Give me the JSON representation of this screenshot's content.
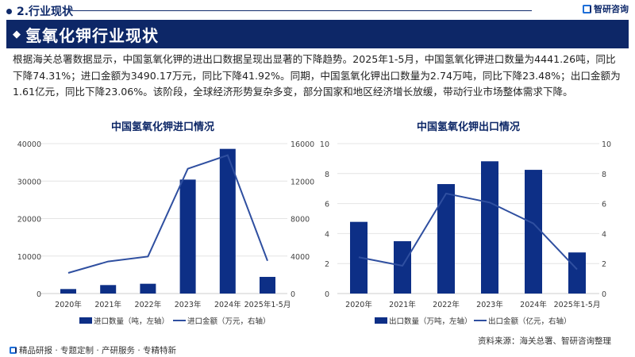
{
  "header": {
    "section": "2.行业现状",
    "brand": "智研咨询",
    "banner_title": "氢氧化钾行业现状",
    "banner_icon": "diamond-icon"
  },
  "paragraph": "根据海关总署数据显示，中国氢氧化钾的进出口数据呈现出显著的下降趋势。2025年1-5月，中国氢氧化钾进口数量为4441.26吨，同比下降74.31%；进口金额为3490.17万元，同比下降41.92%。同期，中国氢氧化钾出口数量为2.74万吨，同比下降23.48%；出口金额为1.61亿元，同比下降23.06%。该阶段，全球经济形势复杂多变，部分国家和地区经济增长放缓，带动行业市场整体需求下降。",
  "chart_data": [
    {
      "type": "bar+line",
      "title": "中国氢氧化钾进口情况",
      "categories": [
        "2020年",
        "2021年",
        "2022年",
        "2023年",
        "2024年",
        "2025年1-5月"
      ],
      "series": [
        {
          "name": "进口数量（吨，左轴）",
          "type": "bar",
          "axis": "left",
          "values": [
            1200,
            2260,
            2610,
            30400,
            38590,
            4441.26
          ]
        },
        {
          "name": "进口金额（万元，右轴）",
          "type": "line",
          "axis": "right",
          "values": [
            2200,
            3420,
            3950,
            13320,
            14760,
            3490.17
          ]
        }
      ],
      "left_axis": {
        "min": 0,
        "max": 40000,
        "ticks": [
          0,
          10000,
          20000,
          30000,
          40000
        ]
      },
      "right_axis": {
        "min": 0,
        "max": 16000,
        "ticks": [
          0,
          4000,
          8000,
          12000,
          16000
        ]
      },
      "grid": true,
      "legend": "bottom",
      "colors": {
        "bar": "#0d2f86",
        "line": "#2f4fa0"
      }
    },
    {
      "type": "bar+line",
      "title": "中国氢氧化钾出口情况",
      "categories": [
        "2020年",
        "2021年",
        "2022年",
        "2023年",
        "2024年",
        "2025年1-5月"
      ],
      "series": [
        {
          "name": "出口数量（万吨，左轴）",
          "type": "bar",
          "axis": "left",
          "values": [
            4.78,
            3.49,
            7.3,
            8.82,
            8.25,
            2.74
          ]
        },
        {
          "name": "出口金额（亿元，右轴）",
          "type": "line",
          "axis": "right",
          "values": [
            2.42,
            1.85,
            6.67,
            6.07,
            4.67,
            1.61
          ]
        }
      ],
      "left_axis": {
        "min": 0,
        "max": 10,
        "ticks": [
          0,
          2,
          4,
          6,
          8,
          10
        ]
      },
      "right_axis": {
        "min": 0,
        "max": 10,
        "ticks": [
          0,
          2,
          4,
          6,
          8,
          10
        ]
      },
      "grid": true,
      "legend": "bottom",
      "colors": {
        "bar": "#0d2f86",
        "line": "#2f4fa0"
      }
    }
  ],
  "footer": {
    "source": "资料来源：海关总署、智研咨询整理",
    "tagline": "精品研报 · 专题定制 · 产研服务 · 专精特新"
  }
}
